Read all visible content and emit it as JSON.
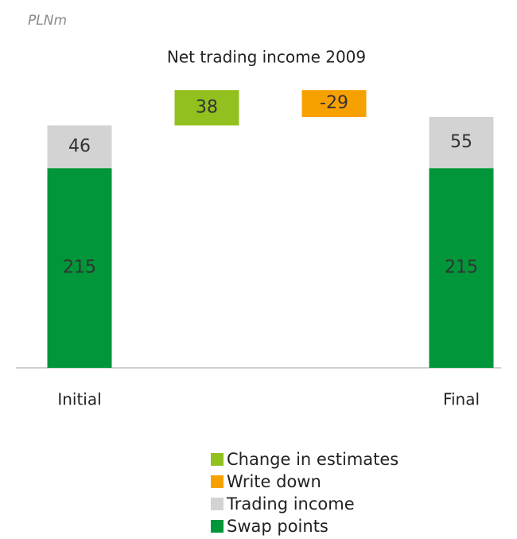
{
  "chart_data": {
    "type": "waterfall",
    "unit": "PLNm",
    "title": "Net trading income  2009",
    "categories": [
      "Initial",
      null,
      null,
      "Final"
    ],
    "series": [
      {
        "name": "Change in estimates",
        "color": "#92c11f",
        "values": [
          null,
          38,
          null,
          null
        ]
      },
      {
        "name": "Write down",
        "color": "#f7a100",
        "values": [
          null,
          null,
          -29,
          null
        ]
      },
      {
        "name": "Trading income",
        "color": "#d3d3d3",
        "values": [
          46,
          null,
          null,
          55
        ]
      },
      {
        "name": "Swap points",
        "color": "#009639",
        "values": [
          215,
          null,
          null,
          215
        ]
      }
    ],
    "ylim": [
      0,
      300
    ]
  }
}
